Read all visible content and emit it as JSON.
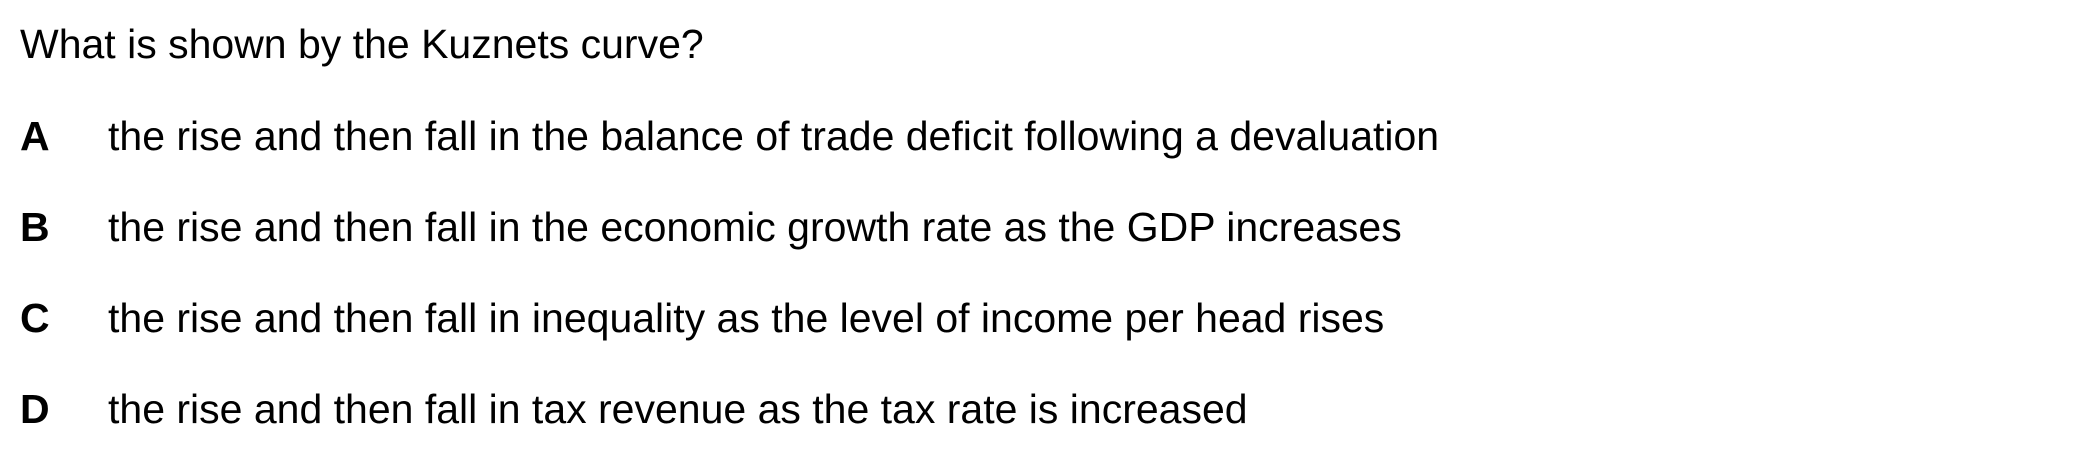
{
  "question": {
    "text": "What is shown by the Kuznets curve?"
  },
  "options": [
    {
      "letter": "A",
      "text": "the rise and then fall in the balance of trade deficit following a devaluation"
    },
    {
      "letter": "B",
      "text": "the rise and then fall in the economic growth rate as the GDP increases"
    },
    {
      "letter": "C",
      "text": "the rise and then fall in inequality as the level of income per head rises"
    },
    {
      "letter": "D",
      "text": "the rise and then fall in tax revenue as the tax rate is increased"
    }
  ]
}
